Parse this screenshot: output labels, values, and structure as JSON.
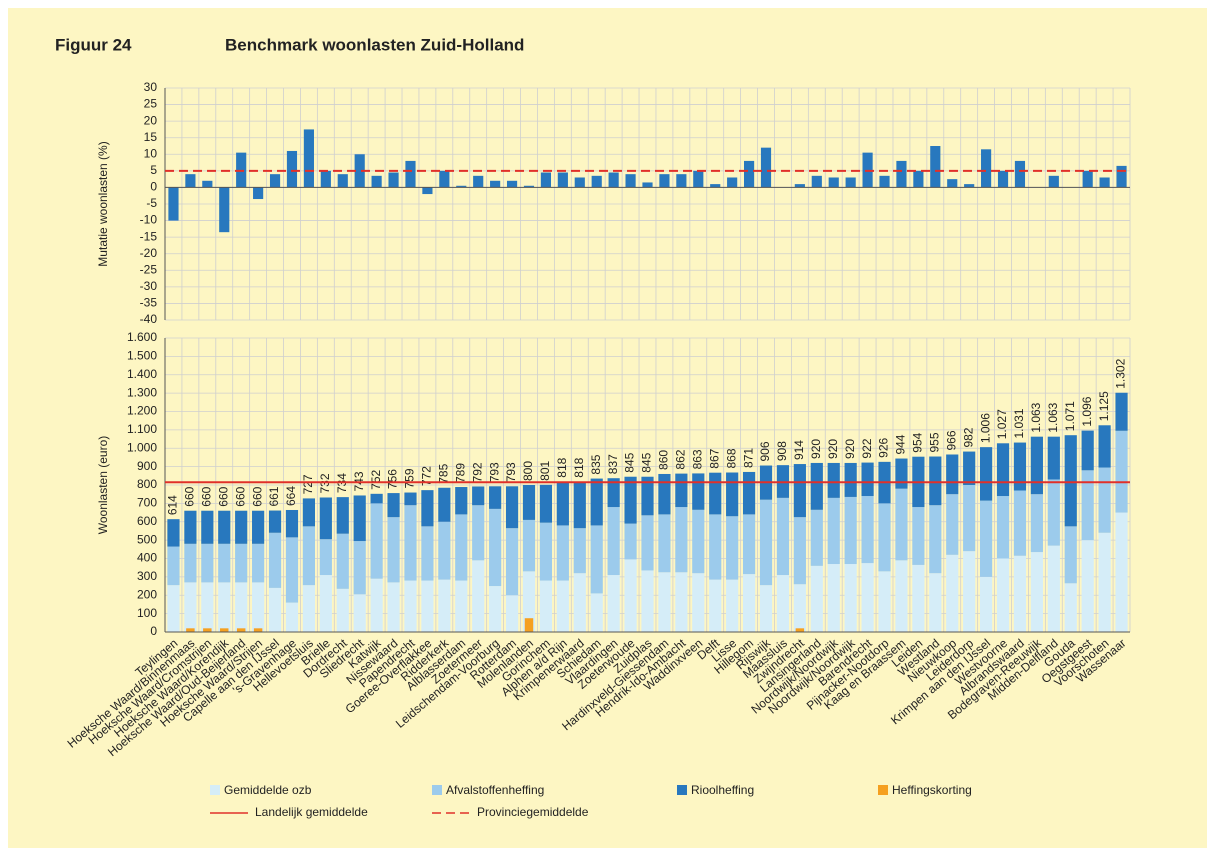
{
  "figure_label": "Figuur 24",
  "title": "Benchmark woonlasten Zuid-Holland",
  "chart_data": [
    {
      "type": "bar",
      "ylabel": "Mutatie woonlasten  (%)",
      "color": "#2878be",
      "grid": true,
      "ylim": [
        -40,
        30
      ],
      "yticks": [
        -40,
        -35,
        -30,
        -25,
        -20,
        -15,
        -10,
        -5,
        0,
        5,
        10,
        15,
        20,
        25,
        30
      ],
      "values": [
        -10,
        4,
        2,
        -13.5,
        10.5,
        -3.5,
        4,
        11,
        17.5,
        5,
        4,
        10,
        3.5,
        4.5,
        8,
        -2,
        5,
        0.5,
        3.5,
        2,
        2,
        0.5,
        4.5,
        4.5,
        3,
        3.5,
        4.5,
        4,
        1.5,
        4,
        4,
        5,
        1,
        3,
        8,
        12,
        null,
        1,
        3.5,
        3,
        3,
        10.5,
        3.5,
        8,
        5,
        12.5,
        2.5,
        1,
        11.5,
        5,
        8,
        null,
        3.5,
        null,
        5,
        3,
        6.5
      ],
      "lines": [
        {
          "name": "Provinciegemiddelde",
          "value": 5,
          "color": "#e0302a",
          "style": "dashed"
        }
      ]
    },
    {
      "type": "stacked_bar",
      "ylabel": "Woonlasten  (euro)",
      "grid": true,
      "ylim": [
        0,
        1600
      ],
      "yticks": [
        0,
        100,
        200,
        300,
        400,
        500,
        600,
        700,
        800,
        900,
        {
          "value": 1000,
          "label": "1.000"
        },
        {
          "value": 1100,
          "label": "1.100"
        },
        {
          "value": 1200,
          "label": "1.200"
        },
        {
          "value": 1300,
          "label": "1.300"
        },
        {
          "value": 1400,
          "label": "1.400"
        },
        {
          "value": 1500,
          "label": "1.500"
        },
        {
          "value": 1600,
          "label": "1.600"
        }
      ],
      "categories": [
        "Teylingen",
        "Hoeksche Waard/Binnenmaas",
        "Hoeksche Waard/Cromstrijen",
        "Hoeksche Waard/Korendijk",
        "Hoeksche Waard/Oud-Beijerland",
        "Hoeksche Waard/Strijen",
        "Capelle aan den IJssel",
        "'s-Gravenhage",
        "Hellevoetsluis",
        "Brielle",
        "Dordrecht",
        "Sliedrecht",
        "Katwijk",
        "Nissewaard",
        "Papendrecht",
        "Goeree-Overflakkee",
        "Ridderkerk",
        "Alblasserdam",
        "Zoetermeer",
        "Leidschendam-Voorburg",
        "Rotterdam",
        "Molenlanden",
        "Gorinchem",
        "Alphen a/d Rijn",
        "Krimpenerwaard",
        "Schiedam",
        "Vlaardingen",
        "Zoeterwoude",
        "Zuidplas",
        "Hardinxveld-Giessendam",
        "Hendrik-Ido-Ambacht",
        "Waddinxveen",
        "Delft",
        "Lisse",
        "Hillegom",
        "Rijswijk",
        "Maassluis",
        "Zwijndrecht",
        "Lansingerland",
        "Noordwijk/Noordwijk",
        "Noordwijk/Noordwijk",
        "Barendrecht",
        "Pijnacker-Nootdorp",
        "Kaag en Braassem",
        "Leiden",
        "Westland",
        "Nieuwkoop",
        "Leiderdorp",
        "Krimpen aan den IJssel",
        "Westvoorne",
        "Albrandswaard",
        "Bodegraven-Reeuwijk",
        "Midden-Delfland",
        "Gouda",
        "Oegstgeest",
        "Voorschoten",
        "Wassenaar"
      ],
      "series": [
        {
          "name": "Gemiddelde ozb",
          "color": "#d5edf8",
          "values": [
            255,
            270,
            270,
            270,
            270,
            270,
            240,
            160,
            255,
            310,
            235,
            205,
            290,
            270,
            280,
            280,
            285,
            280,
            390,
            250,
            200,
            330,
            280,
            280,
            320,
            210,
            310,
            395,
            335,
            325,
            325,
            320,
            285,
            285,
            315,
            255,
            310,
            260,
            360,
            370,
            370,
            375,
            330,
            390,
            365,
            320,
            420,
            440,
            300,
            400,
            415,
            435,
            470,
            265,
            500,
            540,
            650
          ]
        },
        {
          "name": "Afvalstoffenheffing",
          "color": "#9ccbec",
          "values": [
            210,
            210,
            210,
            210,
            210,
            210,
            300,
            355,
            320,
            195,
            300,
            290,
            410,
            355,
            410,
            295,
            315,
            360,
            300,
            420,
            365,
            280,
            315,
            300,
            245,
            370,
            370,
            195,
            300,
            315,
            355,
            345,
            355,
            345,
            325,
            465,
            420,
            365,
            305,
            360,
            365,
            365,
            370,
            390,
            315,
            370,
            330,
            360,
            415,
            340,
            355,
            315,
            360,
            310,
            380,
            355,
            445
          ]
        },
        {
          "name": "Rioolheffing",
          "color": "#2878be",
          "values": [
            149,
            180,
            180,
            180,
            180,
            180,
            121,
            149,
            152,
            227,
            199,
            248,
            52,
            131,
            69,
            197,
            185,
            149,
            102,
            123,
            228,
            190,
            206,
            238,
            253,
            255,
            157,
            255,
            210,
            220,
            182,
            198,
            227,
            238,
            231,
            186,
            178,
            289,
            255,
            190,
            185,
            182,
            226,
            164,
            274,
            265,
            216,
            182,
            291,
            287,
            261,
            313,
            233,
            496,
            216,
            230,
            207
          ]
        }
      ],
      "overlay": {
        "name": "Heffingskorting",
        "color": "#f5a020",
        "values": [
          null,
          20,
          20,
          20,
          20,
          20,
          null,
          null,
          null,
          null,
          null,
          null,
          null,
          null,
          null,
          null,
          null,
          null,
          null,
          null,
          null,
          75,
          null,
          null,
          null,
          null,
          null,
          null,
          null,
          null,
          null,
          null,
          null,
          null,
          null,
          null,
          null,
          20,
          null,
          null,
          null,
          null,
          null,
          null,
          null,
          null,
          null,
          null,
          null,
          null,
          null,
          null,
          null,
          null,
          null,
          null,
          null
        ]
      },
      "totals": {
        "values": [
          614,
          660,
          660,
          660,
          660,
          660,
          661,
          664,
          727,
          732,
          734,
          743,
          752,
          756,
          759,
          772,
          785,
          789,
          792,
          793,
          793,
          800,
          801,
          818,
          818,
          835,
          837,
          845,
          845,
          860,
          862,
          863,
          867,
          868,
          871,
          906,
          908,
          914,
          920,
          920,
          920,
          922,
          926,
          944,
          954,
          955,
          966,
          982,
          1006,
          1027,
          1031,
          1063,
          1063,
          1071,
          1096,
          1125,
          1302
        ],
        "value_labels": [
          "614",
          "660",
          "660",
          "660",
          "660",
          "660",
          "661",
          "664",
          "727",
          "732",
          "734",
          "743",
          "752",
          "756",
          "759",
          "772",
          "785",
          "789",
          "792",
          "793",
          "793",
          "800",
          "801",
          "818",
          "818",
          "835",
          "837",
          "845",
          "845",
          "860",
          "862",
          "863",
          "867",
          "868",
          "871",
          "906",
          "908",
          "914",
          "920",
          "920",
          "920",
          "922",
          "926",
          "944",
          "954",
          "955",
          "966",
          "982",
          "1.006",
          "1.027",
          "1.031",
          "1.063",
          "1.063",
          "1.071",
          "1.096",
          "1.125",
          "1.302"
        ]
      },
      "lines": [
        {
          "name": "Landelijk gemiddelde",
          "value": 815,
          "color": "#e0302a",
          "style": "solid"
        }
      ]
    }
  ]
}
